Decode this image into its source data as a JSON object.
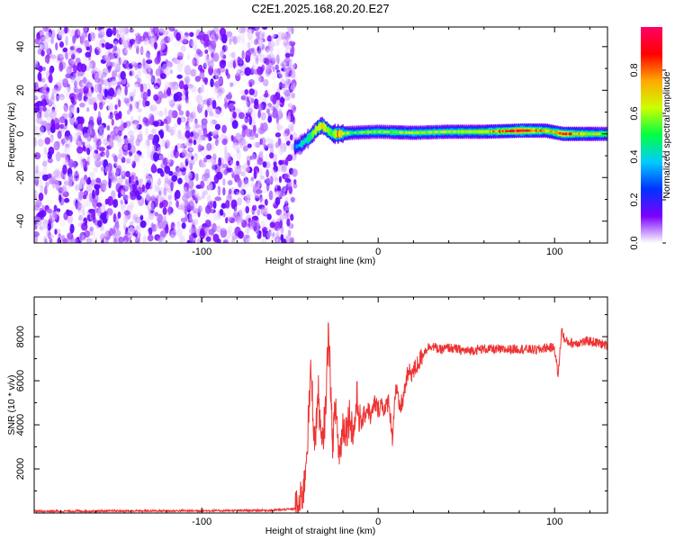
{
  "title": "C2E1.2025.168.20.20.E27",
  "chart_data": [
    {
      "type": "heatmap",
      "xlabel": "Height of straight line (km)",
      "ylabel": "Frequency (Hz)",
      "xlim": [
        -195,
        130
      ],
      "ylim": [
        -50,
        49
      ],
      "xticks": [
        -100,
        0,
        100
      ],
      "yticks": [
        -40,
        -20,
        0,
        20,
        40
      ],
      "noise_region": {
        "x_range": [
          -195,
          -47
        ],
        "freq_range": [
          -50,
          49
        ]
      },
      "signal_track": [
        {
          "x": -47,
          "f": -6,
          "amp": 0.3
        },
        {
          "x": -44,
          "f": -5,
          "amp": 0.4
        },
        {
          "x": -41,
          "f": -3,
          "amp": 0.45
        },
        {
          "x": -38,
          "f": -1,
          "amp": 0.5
        },
        {
          "x": -35,
          "f": 2,
          "amp": 0.55
        },
        {
          "x": -32,
          "f": 4,
          "amp": 0.6
        },
        {
          "x": -29,
          "f": 2,
          "amp": 0.6
        },
        {
          "x": -26,
          "f": 0,
          "amp": 0.55
        },
        {
          "x": -22,
          "f": 0,
          "amp": 0.75
        },
        {
          "x": -15,
          "f": 0.5,
          "amp": 0.5
        },
        {
          "x": 0,
          "f": 1,
          "amp": 0.55
        },
        {
          "x": 20,
          "f": 0.5,
          "amp": 0.6
        },
        {
          "x": 40,
          "f": 1,
          "amp": 0.6
        },
        {
          "x": 60,
          "f": 1,
          "amp": 0.65
        },
        {
          "x": 82,
          "f": 1.5,
          "amp": 0.95
        },
        {
          "x": 95,
          "f": 1.5,
          "amp": 0.7
        },
        {
          "x": 105,
          "f": 0,
          "amp": 0.85
        },
        {
          "x": 120,
          "f": 0,
          "amp": 0.65
        },
        {
          "x": 130,
          "f": 0,
          "amp": 0.6
        }
      ],
      "colorbar": {
        "label": "Normalized spectral amplitude",
        "range": [
          0,
          1
        ],
        "ticks": [
          0.0,
          0.2,
          0.4,
          0.6,
          0.8
        ],
        "tick_labels": [
          "0.0",
          "0.2",
          "0.4",
          "0.6",
          "0.8"
        ],
        "colormap": [
          "#ffffff",
          "#7a00ff",
          "#0033ff",
          "#00ccff",
          "#00ff44",
          "#ccff00",
          "#ffaa00",
          "#ff0000",
          "#ff0066"
        ]
      }
    },
    {
      "type": "line",
      "xlabel": "Height of straight line (km)",
      "ylabel": "SNR (10 * v/v)",
      "xlim": [
        -195,
        130
      ],
      "ylim": [
        0,
        9800
      ],
      "xticks": [
        -100,
        0,
        100
      ],
      "yticks": [
        2000,
        4000,
        6000,
        8000
      ],
      "line_color": "#ee3333",
      "series": [
        {
          "x": [
            -195,
            -150,
            -100,
            -60,
            -45,
            -42,
            -40,
            -38,
            -36,
            -34,
            -32,
            -30,
            -28,
            -26,
            -24,
            -22,
            -20,
            -18,
            -16,
            -14,
            -12,
            -10,
            -8,
            -6,
            -4,
            -2,
            0,
            2,
            4,
            6,
            8,
            10,
            12,
            14,
            16,
            18,
            20,
            22,
            24,
            26,
            28,
            30,
            35,
            40,
            50,
            60,
            70,
            80,
            90,
            95,
            100,
            102,
            104,
            106,
            110,
            120,
            130
          ],
          "y": [
            80,
            90,
            100,
            120,
            200,
            1200,
            3500,
            6500,
            3000,
            5500,
            2800,
            4500,
            8500,
            3200,
            4800,
            2500,
            4000,
            3800,
            4500,
            3500,
            5200,
            4000,
            4400,
            4800,
            4300,
            5000,
            4700,
            5000,
            4600,
            5200,
            3400,
            5800,
            4700,
            5100,
            6100,
            6400,
            6400,
            6700,
            7000,
            7300,
            7500,
            7600,
            7400,
            7500,
            7350,
            7450,
            7400,
            7450,
            7400,
            7500,
            7500,
            6200,
            8300,
            7800,
            7700,
            7800,
            7600
          ]
        }
      ]
    }
  ]
}
